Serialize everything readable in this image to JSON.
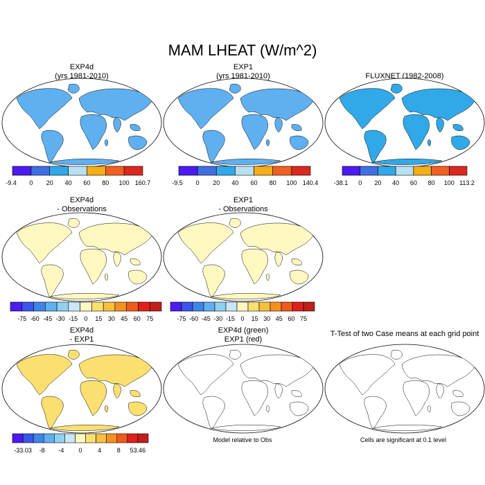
{
  "title": "MAM LHEAT (W/m^2)",
  "chart_data": [
    {
      "type": "heatmap",
      "panel": "exp4d",
      "title_lines": [
        "EXP4d",
        "(yrs 1981-2010)"
      ],
      "variable": "LHEAT",
      "units": "W/m^2",
      "colorbar": {
        "colors": [
          "#4b1bf0",
          "#3f6fe0",
          "#31a9e8",
          "#b8e0f0",
          "#f5ad1a",
          "#f06020",
          "#d8281f"
        ],
        "tick_labels": [
          "-9.4",
          "0",
          "20",
          "40",
          "60",
          "80",
          "100",
          "160.7"
        ]
      }
    },
    {
      "type": "heatmap",
      "panel": "exp1",
      "title_lines": [
        "EXP1",
        "(yrs 1981-2010)"
      ],
      "variable": "LHEAT",
      "units": "W/m^2",
      "colorbar": {
        "colors": [
          "#4b1bf0",
          "#3f6fe0",
          "#31a9e8",
          "#b8e0f0",
          "#f5ad1a",
          "#f06020",
          "#d8281f"
        ],
        "tick_labels": [
          "-9.5",
          "0",
          "20",
          "40",
          "60",
          "80",
          "100",
          "140.4"
        ]
      }
    },
    {
      "type": "heatmap",
      "panel": "fluxnet",
      "title_lines": [
        "FLUXNET (1982-2008)"
      ],
      "variable": "LHEAT",
      "units": "W/m^2",
      "colorbar": {
        "colors": [
          "#4b1bf0",
          "#3f6fe0",
          "#31a9e8",
          "#b8e0f0",
          "#f5ad1a",
          "#f06020",
          "#d8281f"
        ],
        "tick_labels": [
          "-38.1",
          "0",
          "20",
          "40",
          "60",
          "80",
          "100",
          "113.2"
        ]
      }
    },
    {
      "type": "heatmap",
      "panel": "exp4d-minus-obs",
      "title_lines": [
        "EXP4d",
        "- Observations"
      ],
      "colorbar": {
        "colors": [
          "#4b1bf0",
          "#3a55e8",
          "#3f85e8",
          "#5fb0f0",
          "#90d0f0",
          "#c8e8f5",
          "#fff8c0",
          "#fbe070",
          "#f8c040",
          "#f59020",
          "#f05a1a",
          "#e0201c",
          "#c01f1a"
        ],
        "tick_labels": [
          "-75",
          "-60",
          "-45",
          "-30",
          "-15",
          "0",
          "15",
          "30",
          "45",
          "60",
          "75"
        ]
      }
    },
    {
      "type": "heatmap",
      "panel": "exp1-minus-obs",
      "title_lines": [
        "EXP1",
        "- Observations"
      ],
      "colorbar": {
        "colors": [
          "#4b1bf0",
          "#3a55e8",
          "#3f85e8",
          "#5fb0f0",
          "#90d0f0",
          "#c8e8f5",
          "#fff8c0",
          "#fbe070",
          "#f8c040",
          "#f59020",
          "#f05a1a",
          "#e0201c",
          "#c01f1a"
        ],
        "tick_labels": [
          "-75",
          "-60",
          "-45",
          "-30",
          "-15",
          "0",
          "15",
          "30",
          "45",
          "60",
          "75"
        ]
      }
    },
    {
      "type": "heatmap",
      "panel": "exp4d-minus-exp1",
      "title_lines": [
        "EXP4d",
        "- EXP1"
      ],
      "colorbar": {
        "colors": [
          "#4b1bf0",
          "#3a55e8",
          "#3f85e8",
          "#5fb0f0",
          "#90d0f0",
          "#c8e8f5",
          "#fff8c0",
          "#fbe070",
          "#f8c040",
          "#f59020",
          "#f05a1a",
          "#e0201c",
          "#c01f1a"
        ],
        "tick_labels": [
          "-33.03",
          "-8",
          "-4",
          "0",
          "4",
          "8",
          "53.46"
        ]
      }
    },
    {
      "type": "heatmap",
      "panel": "model-relative-to-obs",
      "title_lines": [
        "EXP4d (green)",
        "EXP1 (red)"
      ],
      "series": [
        {
          "name": "EXP4d (green)",
          "color": "#1ed21e"
        },
        {
          "name": "EXP1 (red)",
          "color": "#e01010"
        }
      ],
      "caption": "Model relative to Obs"
    },
    {
      "type": "heatmap",
      "panel": "t-test",
      "title_lines": [
        "T-Test of two Case means at each grid point"
      ],
      "series": [
        {
          "name": "",
          "color": "#e01010"
        }
      ],
      "caption": "Cells are significant at 0.1 level"
    }
  ],
  "colors": {
    "land_outline": "#000000",
    "background": "#ffffff"
  }
}
